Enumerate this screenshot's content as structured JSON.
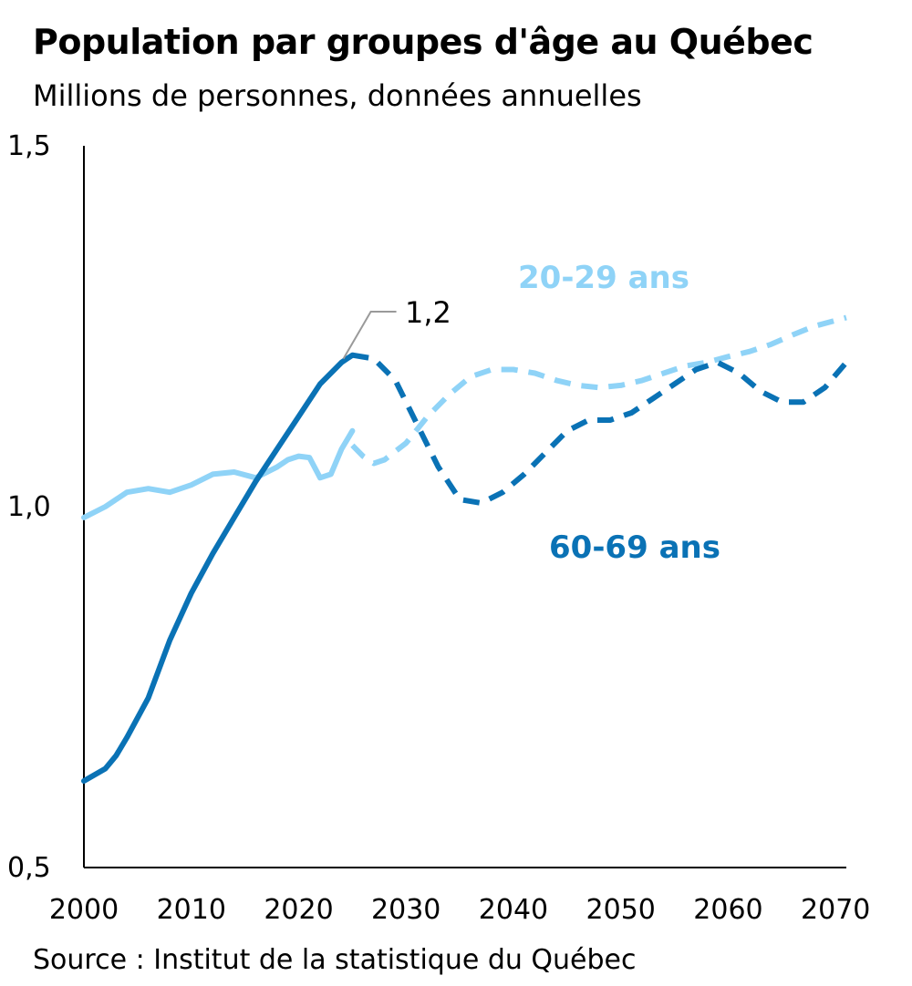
{
  "title": "Population par groupes d'âge au Québec",
  "subtitle": "Millions de personnes, données annuelles",
  "source": "Source : Institut de la statistique du Québec",
  "colors": {
    "light": "#8fd3f7",
    "dark": "#0a72b5",
    "axis": "#000000",
    "callout": "#9a9a9a"
  },
  "chart_data": {
    "type": "line",
    "xlim": [
      2000,
      2071
    ],
    "ylim": [
      0.5,
      1.5
    ],
    "x_ticks": [
      "2000",
      "2010",
      "2020",
      "2030",
      "2040",
      "2050",
      "2060",
      "2070"
    ],
    "y_ticks": [
      "0,5",
      "1,0",
      "1,5"
    ],
    "grid": false,
    "series": [
      {
        "name": "20-29 ans",
        "color": "#8fd3f7",
        "observed": [
          [
            2000,
            0.985
          ],
          [
            2002,
            1.0
          ],
          [
            2004,
            1.02
          ],
          [
            2006,
            1.025
          ],
          [
            2008,
            1.02
          ],
          [
            2010,
            1.03
          ],
          [
            2012,
            1.045
          ],
          [
            2014,
            1.048
          ],
          [
            2016,
            1.04
          ],
          [
            2018,
            1.055
          ],
          [
            2019,
            1.065
          ],
          [
            2020,
            1.07
          ],
          [
            2021,
            1.068
          ],
          [
            2022,
            1.04
          ],
          [
            2023,
            1.045
          ],
          [
            2024,
            1.08
          ],
          [
            2025,
            1.105
          ]
        ],
        "projected": [
          [
            2025,
            1.085
          ],
          [
            2026,
            1.07
          ],
          [
            2027,
            1.06
          ],
          [
            2028,
            1.065
          ],
          [
            2030,
            1.088
          ],
          [
            2032,
            1.125
          ],
          [
            2034,
            1.155
          ],
          [
            2036,
            1.18
          ],
          [
            2038,
            1.19
          ],
          [
            2040,
            1.19
          ],
          [
            2042,
            1.185
          ],
          [
            2044,
            1.175
          ],
          [
            2046,
            1.168
          ],
          [
            2048,
            1.165
          ],
          [
            2050,
            1.168
          ],
          [
            2052,
            1.175
          ],
          [
            2054,
            1.185
          ],
          [
            2056,
            1.195
          ],
          [
            2058,
            1.2
          ],
          [
            2060,
            1.208
          ],
          [
            2062,
            1.215
          ],
          [
            2064,
            1.225
          ],
          [
            2066,
            1.238
          ],
          [
            2068,
            1.25
          ],
          [
            2070,
            1.258
          ],
          [
            2071,
            1.262
          ]
        ]
      },
      {
        "name": "60-69 ans",
        "color": "#0a72b5",
        "observed": [
          [
            2000,
            0.62
          ],
          [
            2002,
            0.637
          ],
          [
            2003,
            0.655
          ],
          [
            2004,
            0.68
          ],
          [
            2006,
            0.735
          ],
          [
            2008,
            0.815
          ],
          [
            2010,
            0.88
          ],
          [
            2012,
            0.935
          ],
          [
            2014,
            0.985
          ],
          [
            2016,
            1.035
          ],
          [
            2018,
            1.08
          ],
          [
            2020,
            1.125
          ],
          [
            2022,
            1.17
          ],
          [
            2024,
            1.2
          ],
          [
            2025,
            1.21
          ]
        ],
        "projected": [
          [
            2025,
            1.21
          ],
          [
            2027,
            1.205
          ],
          [
            2029,
            1.175
          ],
          [
            2031,
            1.115
          ],
          [
            2033,
            1.055
          ],
          [
            2035,
            1.01
          ],
          [
            2037,
            1.005
          ],
          [
            2039,
            1.02
          ],
          [
            2041,
            1.045
          ],
          [
            2043,
            1.075
          ],
          [
            2045,
            1.105
          ],
          [
            2047,
            1.12
          ],
          [
            2049,
            1.12
          ],
          [
            2051,
            1.13
          ],
          [
            2053,
            1.15
          ],
          [
            2055,
            1.17
          ],
          [
            2057,
            1.19
          ],
          [
            2059,
            1.2
          ],
          [
            2061,
            1.185
          ],
          [
            2063,
            1.16
          ],
          [
            2065,
            1.145
          ],
          [
            2067,
            1.145
          ],
          [
            2069,
            1.165
          ],
          [
            2071,
            1.2
          ]
        ]
      }
    ],
    "annotations": [
      {
        "text": "1,2",
        "x": 2024,
        "y": 1.2
      }
    ]
  }
}
